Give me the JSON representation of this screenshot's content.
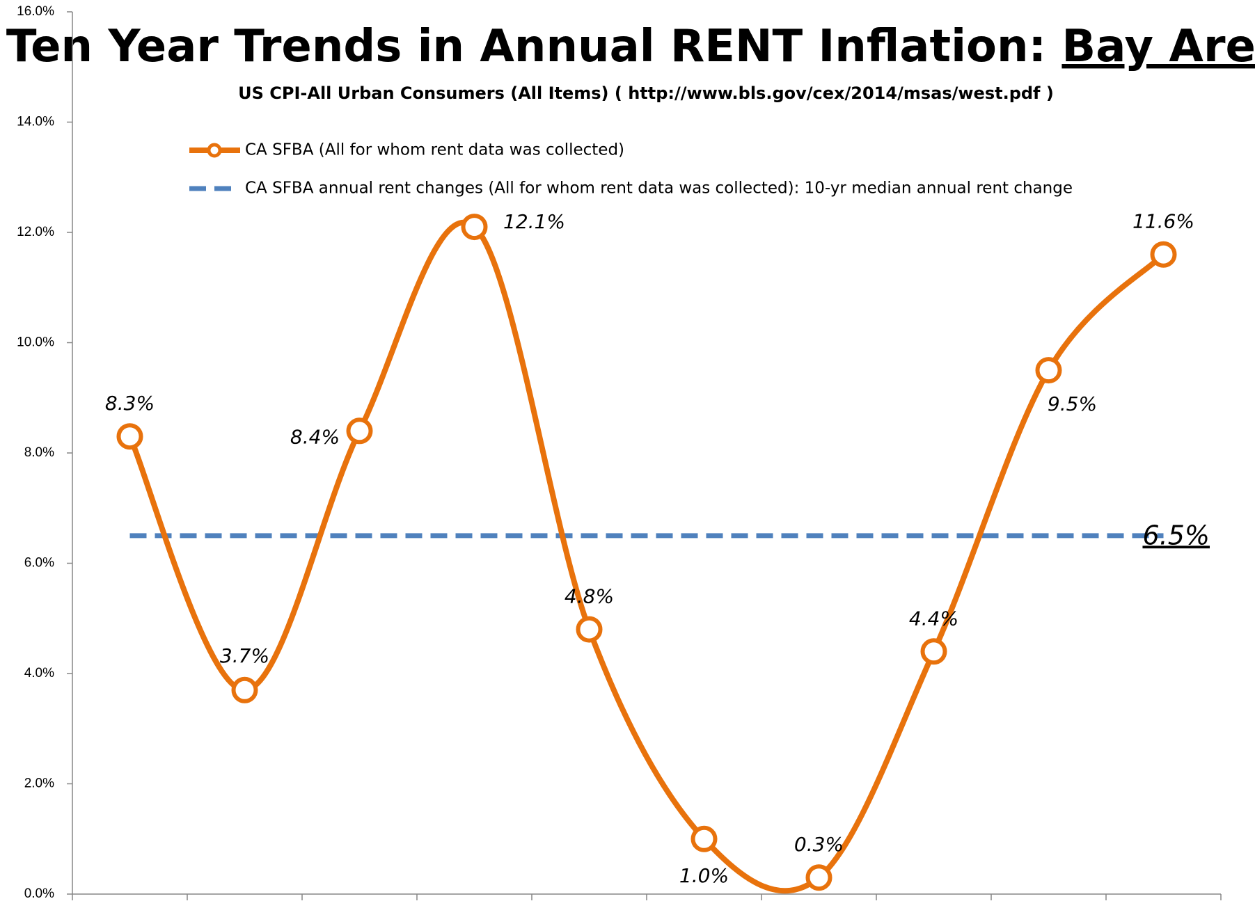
{
  "chart_data": {
    "type": "line",
    "title": "Ten Year Trends in Annual RENT Inflation:",
    "title_highlight": "Bay Area",
    "subtitle": "US CPI-All Urban Consumers  (All Items) ( http://www.bls.gov/cex/2014/msas/west.pdf )",
    "categories": [
      null,
      null,
      null,
      null,
      null,
      null,
      null,
      null,
      null,
      null
    ],
    "series": [
      {
        "name": "CA SFBA (All for whom rent data was collected)",
        "color": "#e8720c",
        "values": [
          8.3,
          3.7,
          8.4,
          12.1,
          4.8,
          1.0,
          0.3,
          4.4,
          9.5,
          11.6
        ],
        "value_labels": [
          "8.3%",
          "3.7%",
          "8.4%",
          "12.1%",
          "4.8%",
          "1.0%",
          "0.3%",
          "4.4%",
          "9.5%",
          "11.6%"
        ]
      }
    ],
    "median": {
      "name": "CA SFBA annual rent changes (All for whom rent data was collected): 10-yr median annual rent change",
      "color": "#4f81bd",
      "value": 6.5,
      "value_label": "6.5%"
    },
    "ylim": [
      0,
      16
    ],
    "yticks": [
      {
        "value": 0,
        "label": "0.0%"
      },
      {
        "value": 2,
        "label": "2.0%"
      },
      {
        "value": 4,
        "label": "4.0%"
      },
      {
        "value": 6,
        "label": "6.0%"
      },
      {
        "value": 8,
        "label": "8.0%"
      },
      {
        "value": 10,
        "label": "10.0%"
      },
      {
        "value": 12,
        "label": "12.0%"
      },
      {
        "value": 14,
        "label": "14.0%"
      },
      {
        "value": 16,
        "label": "16.0%"
      }
    ],
    "smooth": true
  }
}
